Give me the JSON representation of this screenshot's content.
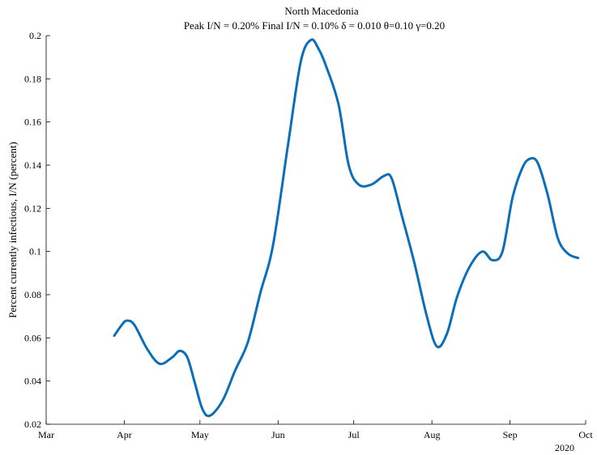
{
  "chart_data": {
    "type": "line",
    "title": "North Macedonia",
    "subtitle": "Peak I/N =  0.20%   Final I/N =  0.10%   δ = 0.010  θ=0.10  γ=0.20",
    "xlabel": "",
    "ylabel": "Percent currently infectious, I/N (percent)",
    "year_label": "2020",
    "xlim": [
      "2020-03-01",
      "2020-10-01"
    ],
    "ylim": [
      0.02,
      0.2
    ],
    "x_ticks": [
      {
        "date": "2020-03-01",
        "label": "Mar"
      },
      {
        "date": "2020-04-01",
        "label": "Apr"
      },
      {
        "date": "2020-05-01",
        "label": "May"
      },
      {
        "date": "2020-06-01",
        "label": "Jun"
      },
      {
        "date": "2020-07-01",
        "label": "Jul"
      },
      {
        "date": "2020-08-01",
        "label": "Aug"
      },
      {
        "date": "2020-09-01",
        "label": "Sep"
      },
      {
        "date": "2020-10-01",
        "label": "Oct"
      }
    ],
    "y_ticks": [
      0.02,
      0.04,
      0.06,
      0.08,
      0.1,
      0.12,
      0.14,
      0.16,
      0.18,
      0.2
    ],
    "y_tick_labels": [
      "0.02",
      "0.04",
      "0.06",
      "0.08",
      "0.1",
      "0.12",
      "0.14",
      "0.16",
      "0.18",
      "0.2"
    ],
    "grid": false,
    "color": "#0b6eb8",
    "series": [
      {
        "x": [
          "2020-03-28",
          "2020-03-31",
          "2020-04-02",
          "2020-04-05",
          "2020-04-10",
          "2020-04-15",
          "2020-04-20",
          "2020-04-23",
          "2020-04-26",
          "2020-04-29",
          "2020-05-02",
          "2020-05-05",
          "2020-05-10",
          "2020-05-15",
          "2020-05-20",
          "2020-05-25",
          "2020-05-30",
          "2020-06-05",
          "2020-06-10",
          "2020-06-14",
          "2020-06-17",
          "2020-06-20",
          "2020-06-25",
          "2020-06-29",
          "2020-07-03",
          "2020-07-08",
          "2020-07-13",
          "2020-07-16",
          "2020-07-20",
          "2020-07-25",
          "2020-07-30",
          "2020-08-03",
          "2020-08-07",
          "2020-08-11",
          "2020-08-16",
          "2020-08-21",
          "2020-08-25",
          "2020-08-29",
          "2020-09-02",
          "2020-09-06",
          "2020-09-09",
          "2020-09-12",
          "2020-09-16",
          "2020-09-20",
          "2020-09-24",
          "2020-09-28"
        ],
        "y": [
          0.061,
          0.066,
          0.068,
          0.066,
          0.055,
          0.048,
          0.051,
          0.054,
          0.051,
          0.039,
          0.027,
          0.024,
          0.031,
          0.045,
          0.058,
          0.081,
          0.103,
          0.15,
          0.188,
          0.198,
          0.194,
          0.186,
          0.168,
          0.14,
          0.131,
          0.131,
          0.135,
          0.134,
          0.117,
          0.095,
          0.07,
          0.056,
          0.062,
          0.079,
          0.093,
          0.1,
          0.096,
          0.1,
          0.125,
          0.139,
          0.143,
          0.141,
          0.126,
          0.106,
          0.099,
          0.097
        ]
      }
    ]
  }
}
